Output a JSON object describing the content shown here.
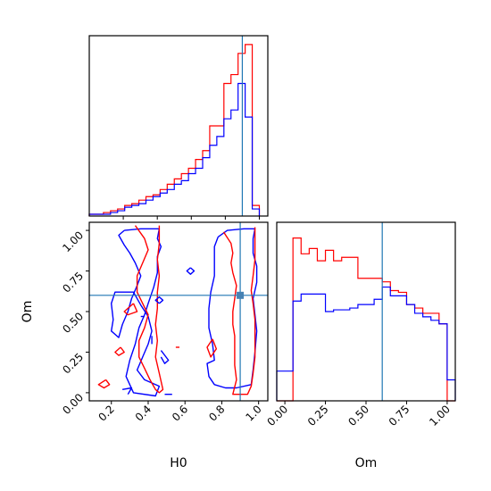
{
  "chart_data": [
    {
      "type": "histogram",
      "panel": "H0 marginal",
      "bins": {
        "start": 0.0,
        "width": 0.04167,
        "count": 24
      },
      "xlim": [
        0.0,
        1.05
      ],
      "truth": 0.9,
      "series": [
        {
          "color": "#ff0000",
          "values": [
            0.01,
            0.01,
            0.02,
            0.03,
            0.04,
            0.06,
            0.07,
            0.09,
            0.11,
            0.12,
            0.15,
            0.18,
            0.21,
            0.24,
            0.27,
            0.32,
            0.37,
            0.51,
            0.51,
            0.75,
            0.8,
            0.92,
            0.97,
            0.06
          ]
        },
        {
          "color": "#0000ff",
          "values": [
            0.01,
            0.01,
            0.01,
            0.02,
            0.03,
            0.05,
            0.06,
            0.07,
            0.09,
            0.11,
            0.13,
            0.15,
            0.18,
            0.2,
            0.24,
            0.27,
            0.33,
            0.4,
            0.45,
            0.55,
            0.6,
            0.75,
            0.56,
            0.04
          ]
        }
      ]
    },
    {
      "type": "histogram",
      "panel": "Om marginal",
      "bins": {
        "start": -0.05,
        "width": 0.05,
        "count": 22
      },
      "xlim": [
        -0.05,
        1.05
      ],
      "truth": 0.6,
      "series": [
        {
          "color": "#ff0000",
          "values": [
            0.0,
            0.0,
            0.93,
            0.84,
            0.87,
            0.8,
            0.86,
            0.8,
            0.82,
            0.82,
            0.7,
            0.7,
            0.7,
            0.68,
            0.63,
            0.62,
            0.55,
            0.53,
            0.5,
            0.5,
            0.44,
            0.0
          ]
        },
        {
          "color": "#0000ff",
          "values": [
            0.17,
            0.17,
            0.57,
            0.61,
            0.61,
            0.61,
            0.51,
            0.52,
            0.52,
            0.53,
            0.55,
            0.55,
            0.58,
            0.65,
            0.6,
            0.6,
            0.55,
            0.5,
            0.48,
            0.46,
            0.44,
            0.12
          ]
        }
      ]
    },
    {
      "type": "contour",
      "panel": "H0 vs Om",
      "xlabel": "H0",
      "ylabel": "Om",
      "xlim": [
        0.08,
        1.05
      ],
      "ylim": [
        -0.05,
        1.05
      ],
      "xticks": [
        "0.2",
        "0.4",
        "0.6",
        "0.8",
        "1.0"
      ],
      "yticks": [
        "0.00",
        "0.25",
        "0.50",
        "0.75",
        "1.00"
      ],
      "truth": [
        0.9,
        0.6
      ],
      "contours": [
        {
          "color": "#0000ff",
          "points": [
            [
              0.27,
              1.0
            ],
            [
              0.36,
              1.01
            ],
            [
              0.46,
              1.01
            ],
            [
              0.45,
              0.95
            ],
            [
              0.47,
              0.9
            ],
            [
              0.45,
              0.84
            ],
            [
              0.45,
              0.74
            ],
            [
              0.43,
              0.65
            ],
            [
              0.4,
              0.55
            ],
            [
              0.38,
              0.48
            ],
            [
              0.35,
              0.4
            ],
            [
              0.33,
              0.3
            ],
            [
              0.3,
              0.2
            ],
            [
              0.28,
              0.1
            ],
            [
              0.32,
              0.0
            ],
            [
              0.44,
              -0.02
            ],
            [
              0.46,
              0.04
            ],
            [
              0.38,
              0.08
            ],
            [
              0.34,
              0.14
            ],
            [
              0.37,
              0.22
            ],
            [
              0.4,
              0.3
            ],
            [
              0.42,
              0.38
            ],
            [
              0.4,
              0.47
            ],
            [
              0.36,
              0.54
            ],
            [
              0.32,
              0.62
            ],
            [
              0.22,
              0.62
            ],
            [
              0.2,
              0.55
            ],
            [
              0.21,
              0.45
            ],
            [
              0.2,
              0.38
            ],
            [
              0.24,
              0.34
            ],
            [
              0.26,
              0.42
            ],
            [
              0.29,
              0.5
            ],
            [
              0.31,
              0.58
            ],
            [
              0.34,
              0.66
            ],
            [
              0.36,
              0.72
            ],
            [
              0.33,
              0.8
            ],
            [
              0.3,
              0.86
            ],
            [
              0.27,
              0.91
            ],
            [
              0.24,
              0.97
            ],
            [
              0.27,
              1.0
            ]
          ]
        },
        {
          "color": "#0000ff",
          "points": [
            [
              0.78,
              0.96
            ],
            [
              0.83,
              1.0
            ],
            [
              0.92,
              1.01
            ],
            [
              0.98,
              1.01
            ],
            [
              0.97,
              0.95
            ],
            [
              0.97,
              0.86
            ],
            [
              0.99,
              0.78
            ],
            [
              0.99,
              0.68
            ],
            [
              0.97,
              0.58
            ],
            [
              0.98,
              0.48
            ],
            [
              0.99,
              0.38
            ],
            [
              0.98,
              0.25
            ],
            [
              0.97,
              0.14
            ],
            [
              0.96,
              0.05
            ],
            [
              0.88,
              0.03
            ],
            [
              0.82,
              0.03
            ],
            [
              0.76,
              0.05
            ],
            [
              0.73,
              0.1
            ],
            [
              0.72,
              0.18
            ],
            [
              0.76,
              0.2
            ],
            [
              0.75,
              0.3
            ],
            [
              0.73,
              0.4
            ],
            [
              0.73,
              0.52
            ],
            [
              0.74,
              0.62
            ],
            [
              0.76,
              0.72
            ],
            [
              0.76,
              0.82
            ],
            [
              0.76,
              0.9
            ],
            [
              0.78,
              0.96
            ]
          ]
        },
        {
          "color": "#ff0000",
          "points": [
            [
              0.33,
              1.03
            ],
            [
              0.38,
              0.95
            ],
            [
              0.4,
              0.88
            ],
            [
              0.37,
              0.8
            ],
            [
              0.34,
              0.72
            ],
            [
              0.34,
              0.62
            ],
            [
              0.37,
              0.55
            ],
            [
              0.4,
              0.48
            ],
            [
              0.38,
              0.4
            ],
            [
              0.35,
              0.32
            ],
            [
              0.35,
              0.22
            ],
            [
              0.38,
              0.15
            ],
            [
              0.41,
              0.08
            ],
            [
              0.44,
              0.02
            ],
            [
              0.46,
              0.0
            ],
            [
              0.48,
              0.02
            ],
            [
              0.46,
              0.12
            ],
            [
              0.44,
              0.22
            ],
            [
              0.45,
              0.32
            ],
            [
              0.44,
              0.42
            ],
            [
              0.45,
              0.52
            ],
            [
              0.45,
              0.62
            ],
            [
              0.46,
              0.72
            ],
            [
              0.45,
              0.82
            ],
            [
              0.46,
              0.92
            ],
            [
              0.46,
              1.03
            ]
          ]
        },
        {
          "color": "#ff0000",
          "points": [
            [
              0.81,
              0.99
            ],
            [
              0.85,
              0.92
            ],
            [
              0.86,
              0.86
            ],
            [
              0.85,
              0.8
            ],
            [
              0.86,
              0.74
            ],
            [
              0.88,
              0.66
            ],
            [
              0.87,
              0.58
            ],
            [
              0.86,
              0.5
            ],
            [
              0.86,
              0.42
            ],
            [
              0.87,
              0.35
            ],
            [
              0.87,
              0.26
            ],
            [
              0.87,
              0.17
            ],
            [
              0.88,
              0.08
            ],
            [
              0.86,
              -0.01
            ],
            [
              0.94,
              -0.01
            ],
            [
              0.96,
              0.04
            ],
            [
              0.97,
              0.12
            ],
            [
              0.98,
              0.22
            ],
            [
              0.98,
              0.32
            ],
            [
              0.98,
              0.45
            ],
            [
              0.97,
              0.55
            ],
            [
              0.96,
              0.63
            ],
            [
              0.97,
              0.72
            ],
            [
              0.98,
              0.82
            ],
            [
              0.98,
              0.92
            ],
            [
              0.98,
              1.02
            ]
          ]
        },
        {
          "color": "#0000ff",
          "points": [
            [
              0.63,
              0.77
            ],
            [
              0.65,
              0.75
            ],
            [
              0.63,
              0.73
            ],
            [
              0.61,
              0.75
            ],
            [
              0.63,
              0.77
            ]
          ]
        },
        {
          "color": "#0000ff",
          "points": [
            [
              0.26,
              0.02
            ],
            [
              0.31,
              0.03
            ],
            [
              0.29,
              -0.01
            ]
          ]
        },
        {
          "color": "#0000ff",
          "points": [
            [
              0.49,
              -0.01
            ],
            [
              0.53,
              -0.01
            ]
          ]
        },
        {
          "color": "#0000ff",
          "points": [
            [
              0.47,
              0.26
            ],
            [
              0.51,
              0.2
            ],
            [
              0.49,
              0.18
            ],
            [
              0.47,
              0.22
            ]
          ]
        },
        {
          "color": "#0000ff",
          "points": [
            [
              0.42,
              0.3
            ],
            [
              0.42,
              0.35
            ]
          ]
        },
        {
          "color": "#0000ff",
          "points": [
            [
              0.36,
              0.47
            ],
            [
              0.38,
              0.47
            ]
          ]
        },
        {
          "color": "#0000ff",
          "points": [
            [
              0.46,
              0.55
            ],
            [
              0.48,
              0.57
            ],
            [
              0.46,
              0.59
            ],
            [
              0.44,
              0.57
            ],
            [
              0.46,
              0.55
            ]
          ]
        },
        {
          "color": "#ff0000",
          "points": [
            [
              0.32,
              0.55
            ],
            [
              0.34,
              0.5
            ],
            [
              0.29,
              0.48
            ],
            [
              0.27,
              0.5
            ],
            [
              0.32,
              0.55
            ]
          ]
        },
        {
          "color": "#ff0000",
          "points": [
            [
              0.25,
              0.28
            ],
            [
              0.27,
              0.25
            ],
            [
              0.24,
              0.23
            ],
            [
              0.22,
              0.25
            ],
            [
              0.25,
              0.28
            ]
          ]
        },
        {
          "color": "#ff0000",
          "points": [
            [
              0.17,
              0.08
            ],
            [
              0.19,
              0.05
            ],
            [
              0.16,
              0.03
            ],
            [
              0.13,
              0.05
            ],
            [
              0.17,
              0.08
            ]
          ]
        },
        {
          "color": "#ff0000",
          "points": [
            [
              0.55,
              0.28
            ],
            [
              0.57,
              0.28
            ]
          ]
        },
        {
          "color": "#ff0000",
          "points": [
            [
              0.75,
              0.33
            ],
            [
              0.77,
              0.27
            ],
            [
              0.74,
              0.22
            ],
            [
              0.72,
              0.28
            ],
            [
              0.75,
              0.33
            ]
          ]
        }
      ]
    }
  ],
  "tick_labels": {
    "h0_axis": [
      "0.2",
      "0.4",
      "0.6",
      "0.8",
      "1.0"
    ],
    "om_axis": [
      "0.00",
      "0.25",
      "0.50",
      "0.75",
      "1.00"
    ]
  },
  "axis_titles": {
    "x_left": "H0",
    "x_right": "Om",
    "y_left": "Om"
  }
}
